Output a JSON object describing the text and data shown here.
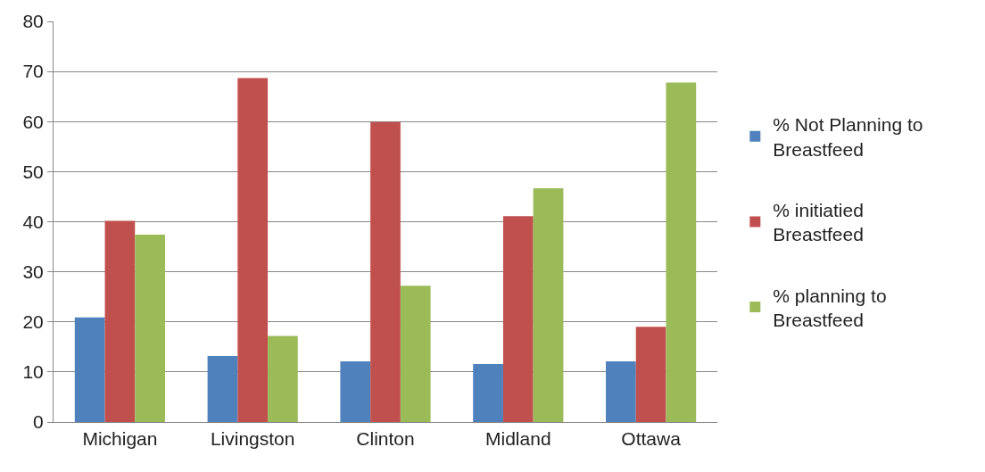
{
  "chart_data": {
    "type": "bar",
    "categories": [
      "Michigan",
      "Livingston",
      "Clinton",
      "Midland",
      "Ottawa"
    ],
    "series": [
      {
        "name": "% Not Planning to Breastfeed",
        "color": "#4f81bd",
        "values": [
          20.9,
          13.2,
          12.1,
          11.6,
          12.1
        ]
      },
      {
        "name": "% initiatied Breastfeed",
        "color": "#c0504d",
        "values": [
          40.2,
          68.7,
          59.9,
          41.1,
          19.0
        ]
      },
      {
        "name": "% planning to Breastfeed",
        "color": "#9bbb59",
        "values": [
          37.4,
          17.2,
          27.2,
          46.7,
          67.8
        ]
      }
    ],
    "ylim": [
      0,
      80
    ],
    "yticks": [
      0,
      10,
      20,
      30,
      40,
      50,
      60,
      70,
      80
    ],
    "grid": "y",
    "legend": "right"
  }
}
